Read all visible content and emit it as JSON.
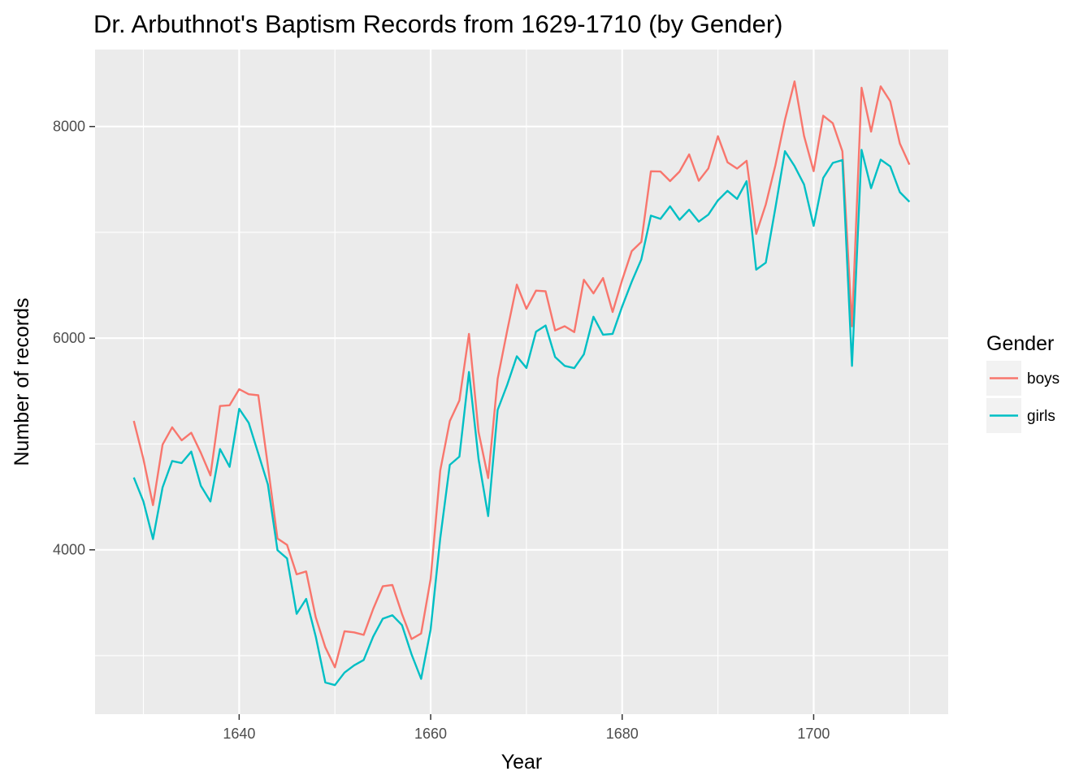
{
  "chart_data": {
    "type": "line",
    "title": "Dr. Arbuthnot's Baptism Records from 1629-1710 (by Gender)",
    "xlabel": "Year",
    "ylabel": "Number of records",
    "xlim": [
      1624.95,
      1714.05
    ],
    "ylim": [
      2446.85,
      8727.15
    ],
    "x_ticks": [
      1640,
      1660,
      1680,
      1700
    ],
    "y_ticks": [
      4000,
      6000,
      8000
    ],
    "x_tick_labels": [
      "1640",
      "1660",
      "1680",
      "1700"
    ],
    "y_tick_labels": [
      "4000",
      "6000",
      "8000"
    ],
    "grid": true,
    "legend": {
      "title": "Gender",
      "position": "right"
    },
    "x": [
      1629,
      1630,
      1631,
      1632,
      1633,
      1634,
      1635,
      1636,
      1637,
      1638,
      1639,
      1640,
      1641,
      1642,
      1643,
      1644,
      1645,
      1646,
      1647,
      1648,
      1649,
      1650,
      1651,
      1652,
      1653,
      1654,
      1655,
      1656,
      1657,
      1658,
      1659,
      1660,
      1661,
      1662,
      1663,
      1664,
      1665,
      1666,
      1667,
      1668,
      1669,
      1670,
      1671,
      1672,
      1673,
      1674,
      1675,
      1676,
      1677,
      1678,
      1679,
      1680,
      1681,
      1682,
      1683,
      1684,
      1685,
      1686,
      1687,
      1688,
      1689,
      1690,
      1691,
      1692,
      1693,
      1694,
      1695,
      1696,
      1697,
      1698,
      1699,
      1700,
      1701,
      1702,
      1703,
      1704,
      1705,
      1706,
      1707,
      1708,
      1709,
      1710
    ],
    "series": [
      {
        "name": "boys",
        "color": "#F8766D",
        "values": [
          5218,
          4858,
          4422,
          4994,
          5158,
          5035,
          5106,
          4917,
          4703,
          5359,
          5366,
          5518,
          5470,
          5460,
          4793,
          4107,
          4047,
          3768,
          3796,
          3363,
          3079,
          2890,
          3231,
          3220,
          3196,
          3441,
          3655,
          3668,
          3396,
          3157,
          3209,
          3724,
          4748,
          5216,
          5411,
          6041,
          5114,
          4678,
          5616,
          6073,
          6506,
          6278,
          6449,
          6443,
          6073,
          6113,
          6058,
          6552,
          6423,
          6568,
          6247,
          6548,
          6822,
          6909,
          7577,
          7575,
          7484,
          7575,
          7737,
          7487,
          7604,
          7909,
          7662,
          7602,
          7676,
          6985,
          7263,
          7632,
          8062,
          8426,
          7911,
          7578,
          8102,
          8031,
          7765,
          6113,
          8366,
          7952,
          8379,
          8239,
          7840,
          7640
        ]
      },
      {
        "name": "girls",
        "color": "#00BFC4",
        "values": [
          4683,
          4457,
          4102,
          4590,
          4839,
          4820,
          4928,
          4605,
          4457,
          4952,
          4784,
          5332,
          5200,
          4910,
          4617,
          3997,
          3919,
          3395,
          3536,
          3181,
          2746,
          2722,
          2840,
          2908,
          2959,
          3179,
          3349,
          3382,
          3289,
          3013,
          2781,
          3247,
          4107,
          4803,
          4881,
          5681,
          4858,
          4319,
          5322,
          5560,
          5829,
          5719,
          6061,
          6120,
          5822,
          5738,
          5717,
          5847,
          6203,
          6033,
          6041,
          6299,
          6533,
          6744,
          7158,
          7127,
          7246,
          7119,
          7214,
          7101,
          7167,
          7302,
          7392,
          7316,
          7483,
          6647,
          6713,
          7229,
          7767,
          7626,
          7452,
          7061,
          7514,
          7656,
          7683,
          5738,
          7779,
          7417,
          7687,
          7623,
          7380,
          7288
        ]
      }
    ]
  }
}
